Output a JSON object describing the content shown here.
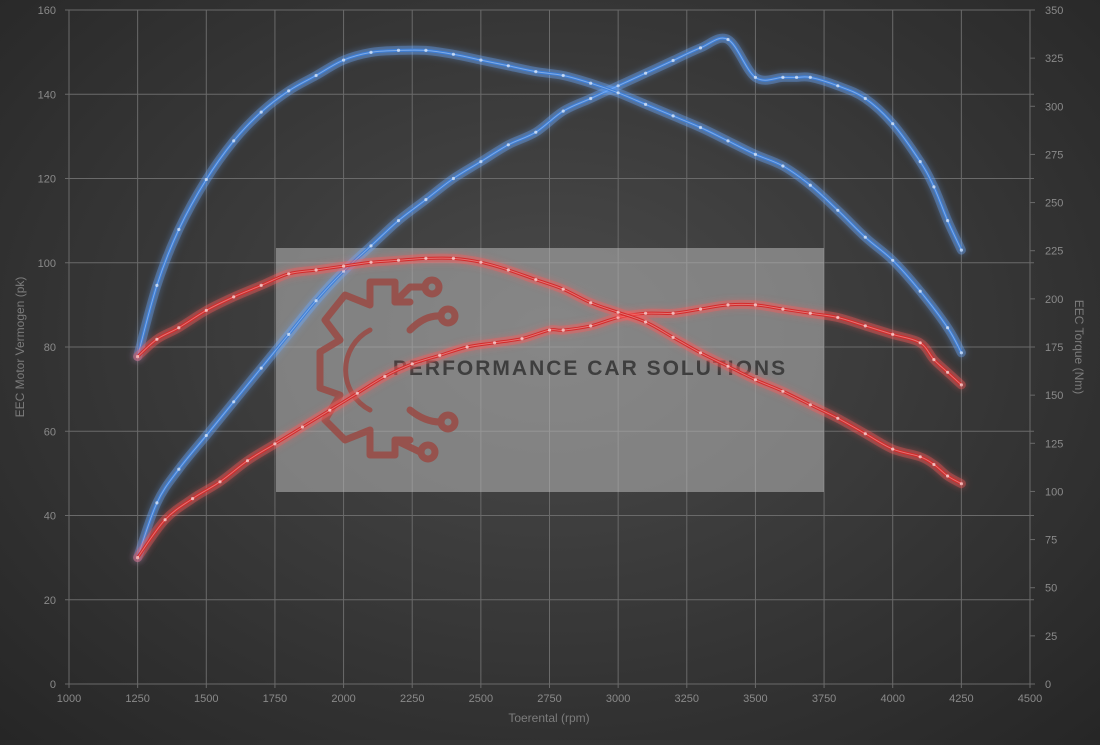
{
  "chart_data": {
    "type": "line",
    "title": "",
    "xlabel": "Toerental (rpm)",
    "ylabel_left": "EEC Motor Vermogen (pk)",
    "ylabel_right": "EEC Torque (Nm)",
    "xlim": [
      1000,
      4500
    ],
    "ylim_left": [
      0,
      160
    ],
    "ylim_right": [
      0,
      350
    ],
    "x_ticks": [
      "1000",
      "1250",
      "1500",
      "1750",
      "2000",
      "2250",
      "2500",
      "2750",
      "3000",
      "3250",
      "3500",
      "3750",
      "4000",
      "4250",
      "4500"
    ],
    "y_left_ticks": [
      "0",
      "20",
      "40",
      "60",
      "80",
      "100",
      "120",
      "140",
      "160"
    ],
    "y_right_ticks": [
      "0",
      "25",
      "50",
      "75",
      "100",
      "125",
      "150",
      "175",
      "200",
      "225",
      "250",
      "275",
      "300",
      "325",
      "350"
    ],
    "grid": true,
    "legend": "none",
    "watermark": "PERFORMANCE CAR SOLUTIONS",
    "colors": {
      "tuned": "#3d7fd9",
      "stock": "#d42a2a",
      "tuned_glow": "#6aa8ff",
      "stock_glow": "#ff5a5a"
    },
    "series": [
      {
        "axis": "left",
        "color": "tuned",
        "x": [
          1250,
          1320,
          1400,
          1500,
          1600,
          1700,
          1800,
          1900,
          2000,
          2100,
          2200,
          2300,
          2400,
          2500,
          2600,
          2700,
          2800,
          2900,
          3000,
          3100,
          3200,
          3300,
          3400,
          3500,
          3600,
          3650,
          3700,
          3800,
          3900,
          4000,
          4100,
          4150,
          4200,
          4250
        ],
        "values": [
          30,
          43,
          51,
          59,
          67,
          75,
          83,
          91,
          98,
          104,
          110,
          115,
          120,
          124,
          128,
          131,
          136,
          139,
          142,
          145,
          148,
          151,
          153,
          144,
          144,
          144,
          144,
          142,
          139,
          133,
          124,
          118,
          110,
          103
        ]
      },
      {
        "axis": "left",
        "color": "stock",
        "x": [
          1250,
          1350,
          1450,
          1550,
          1650,
          1750,
          1850,
          1950,
          2050,
          2150,
          2250,
          2350,
          2450,
          2550,
          2650,
          2750,
          2800,
          2900,
          3000,
          3100,
          3200,
          3300,
          3400,
          3500,
          3600,
          3700,
          3800,
          3900,
          4000,
          4100,
          4150,
          4200,
          4250
        ],
        "values": [
          30,
          39,
          44,
          48,
          53,
          57,
          61,
          65,
          69,
          73,
          76,
          78,
          80,
          81,
          82,
          84,
          84,
          85,
          87,
          88,
          88,
          89,
          90,
          90,
          89,
          88,
          87,
          85,
          83,
          81,
          77,
          74,
          71
        ]
      },
      {
        "axis": "right",
        "color": "tuned",
        "x": [
          1250,
          1320,
          1400,
          1500,
          1600,
          1700,
          1800,
          1900,
          2000,
          2100,
          2200,
          2300,
          2400,
          2500,
          2600,
          2700,
          2800,
          2900,
          3000,
          3100,
          3200,
          3300,
          3400,
          3500,
          3600,
          3700,
          3800,
          3900,
          4000,
          4100,
          4200,
          4250
        ],
        "values": [
          170,
          207,
          236,
          262,
          282,
          297,
          308,
          316,
          324,
          328,
          329,
          329,
          327,
          324,
          321,
          318,
          316,
          312,
          307,
          301,
          295,
          289,
          282,
          275,
          269,
          259,
          246,
          232,
          220,
          204,
          185,
          172
        ]
      },
      {
        "axis": "right",
        "color": "stock",
        "x": [
          1250,
          1320,
          1400,
          1500,
          1600,
          1700,
          1800,
          1900,
          2000,
          2100,
          2200,
          2300,
          2400,
          2500,
          2600,
          2700,
          2800,
          2900,
          3000,
          3100,
          3200,
          3300,
          3400,
          3500,
          3600,
          3700,
          3800,
          3900,
          4000,
          4100,
          4150,
          4200,
          4250
        ],
        "values": [
          170,
          179,
          185,
          194,
          201,
          207,
          213,
          215,
          217,
          219,
          220,
          221,
          221,
          219,
          215,
          210,
          205,
          198,
          193,
          188,
          180,
          172,
          165,
          158,
          152,
          145,
          138,
          130,
          122,
          118,
          114,
          108,
          104
        ]
      }
    ]
  }
}
